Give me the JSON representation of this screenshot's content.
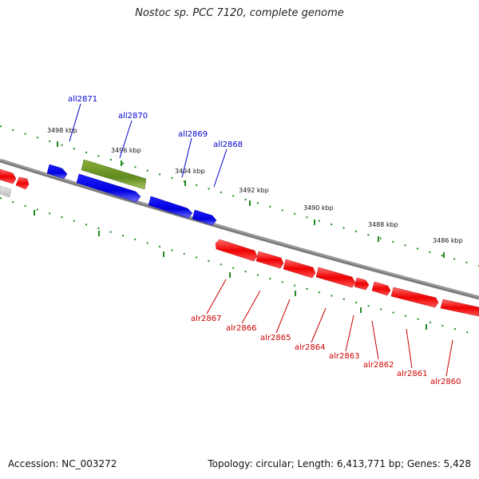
{
  "title": "Nostoc sp. PCC 7120, complete genome",
  "footer": {
    "accession": "Accession: NC_003272",
    "summary": "Topology: circular; Length: 6,413,771 bp; Genes: 5,428"
  },
  "colors": {
    "forward_gene": "#ee0000",
    "reverse_gene": "#0000ee",
    "highlight_gene": "#6b8e23",
    "backbone": "#888888",
    "tick": "#228b22",
    "label_forward": "#cc0000",
    "label_reverse": "#0000cc"
  },
  "kbp_labels": [
    "3498 kbp",
    "3496 kbp",
    "3494 kbp",
    "3492 kbp",
    "3490 kbp",
    "3488 kbp",
    "3486 kbp"
  ],
  "reverse_genes": [
    "all2871",
    "all2870",
    "all2869",
    "all2868"
  ],
  "forward_genes": [
    "alr2867",
    "alr2866",
    "alr2865",
    "alr2864",
    "alr2863",
    "alr2862",
    "alr2861",
    "alr2860"
  ]
}
